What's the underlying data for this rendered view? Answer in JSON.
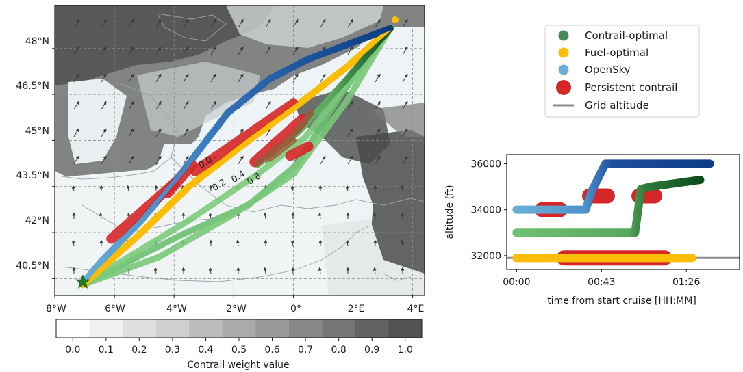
{
  "map": {
    "lon_ticks": [
      "8°W",
      "6°W",
      "4°W",
      "2°W",
      "0°",
      "2°E",
      "4°E"
    ],
    "lat_ticks": [
      "48°N",
      "46.5°N",
      "45°N",
      "43.5°N",
      "42°N",
      "40.5°N"
    ],
    "contour_labels": [
      "0.0",
      "0.2",
      "0.4",
      "0.8"
    ]
  },
  "colorbar": {
    "label": "Contrail weight value",
    "ticks": [
      "0.0",
      "0.1",
      "0.2",
      "0.3",
      "0.4",
      "0.5",
      "0.6",
      "0.7",
      "0.8",
      "0.9",
      "1.0"
    ]
  },
  "legend": {
    "items": [
      {
        "label": "Contrail-optimal",
        "color": "#4a8a5a",
        "kind": "dot"
      },
      {
        "label": "Fuel-optimal",
        "color": "#fbbd08",
        "kind": "dot"
      },
      {
        "label": "OpenSky",
        "color": "#6aaed6",
        "kind": "dot"
      },
      {
        "label": "Persistent contrail",
        "color": "#d62728",
        "kind": "bigdot"
      },
      {
        "label": "Grid altitude",
        "color": "#8c8c8c",
        "kind": "line"
      }
    ]
  },
  "chart_data": [
    {
      "type": "line",
      "title": "",
      "xlabel": "",
      "ylabel": "",
      "x_ticks": [
        "8°W",
        "6°W",
        "4°W",
        "2°W",
        "0°",
        "2°E",
        "4°E"
      ],
      "y_ticks": [
        "48°N",
        "46.5°N",
        "45°N",
        "43.5°N",
        "42°N",
        "40.5°N"
      ],
      "xlim": [
        -8.0,
        4.4
      ],
      "ylim": [
        39.95,
        49.4
      ],
      "grid": true,
      "series": [
        {
          "name": "OpenSky",
          "color": "#1f4e9c",
          "x": [
            -7.05,
            -6.5,
            -5.1,
            -3.7,
            -2.2,
            -0.8,
            0.5,
            3.25
          ],
          "y": [
            40.35,
            41.0,
            42.4,
            44.0,
            45.9,
            47.0,
            47.65,
            48.65
          ]
        },
        {
          "name": "Fuel-optimal",
          "color": "#fbbd08",
          "x": [
            -7.05,
            -5.2,
            -3.5,
            -1.5,
            0.2,
            1.8,
            3.25
          ],
          "y": [
            40.3,
            41.9,
            43.5,
            45.0,
            46.2,
            47.4,
            48.65
          ]
        },
        {
          "name": "Contrail-optimal",
          "color": "#6cc070",
          "x": [
            -7.05,
            -3.8,
            -1.5,
            0.1,
            1.6,
            3.25
          ],
          "y": [
            40.3,
            41.9,
            42.9,
            44.2,
            46.5,
            48.65
          ]
        },
        {
          "name": "Contrail-optimal",
          "color": "#79c879",
          "x": [
            -7.05,
            -4.5,
            -2.0,
            0.0,
            1.8,
            3.25
          ],
          "y": [
            40.3,
            41.2,
            42.6,
            43.9,
            46.3,
            48.65
          ]
        },
        {
          "name": "Contrail-optimal",
          "color": "#7ccb7c",
          "x": [
            -7.05,
            -3.5,
            -1.2,
            0.4,
            3.25
          ],
          "y": [
            40.3,
            42.4,
            43.9,
            45.1,
            48.65
          ]
        },
        {
          "name": "Contrail-optimal",
          "color": "#0b4d1c",
          "x": [
            -1.2,
            0.2,
            1.7,
            3.25
          ],
          "y": [
            44.2,
            45.3,
            46.9,
            48.65
          ]
        }
      ],
      "persistent_contrail_segments": [
        {
          "x": [
            -4.2,
            -3.4
          ],
          "y": [
            43.3,
            44.2
          ]
        },
        {
          "x": [
            -6.1,
            -4.0
          ],
          "y": [
            41.8,
            43.6
          ]
        },
        {
          "x": [
            -3.3,
            0.0
          ],
          "y": [
            44.0,
            46.2
          ]
        },
        {
          "x": [
            -1.3,
            0.3
          ],
          "y": [
            44.3,
            45.7
          ]
        },
        {
          "x": [
            -0.1,
            0.5
          ],
          "y": [
            44.5,
            44.8
          ]
        }
      ],
      "wind_arrows": true
    },
    {
      "type": "line",
      "title": "",
      "xlabel": "time from start cruise [HH:MM]",
      "ylabel": "altitude (ft)",
      "x_ticks": [
        "00:00",
        "00:43",
        "01:26"
      ],
      "x_tick_values": [
        0,
        43,
        86
      ],
      "y_ticks": [
        32000,
        34000,
        36000
      ],
      "xlim": [
        -5,
        113
      ],
      "ylim": [
        31400,
        36400
      ],
      "series": [
        {
          "name": "OpenSky",
          "color": "#6aaed6",
          "x": [
            0,
            35,
            38,
            45,
            98
          ],
          "y": [
            34000,
            34000,
            34800,
            36000,
            36000
          ]
        },
        {
          "name": "Fuel-optimal",
          "color": "#fbbd08",
          "x": [
            0,
            89
          ],
          "y": [
            31900,
            31900
          ]
        },
        {
          "name": "Contrail-optimal",
          "color": "#6cc070",
          "x": [
            0,
            60,
            63,
            68,
            93
          ],
          "y": [
            33000,
            33000,
            34900,
            35000,
            35300
          ]
        },
        {
          "name": "Grid altitude",
          "color": "#8c8c8c",
          "x": [
            -5,
            113
          ],
          "y": [
            31900,
            31900
          ]
        }
      ],
      "persistent_contrail": [
        {
          "x": [
            13,
            22
          ],
          "y": 34000
        },
        {
          "x": [
            37,
            46
          ],
          "y": 34600
        },
        {
          "x": [
            24,
            75
          ],
          "y": 31900
        },
        {
          "x": [
            62,
            70
          ],
          "y": 34600
        }
      ]
    }
  ]
}
